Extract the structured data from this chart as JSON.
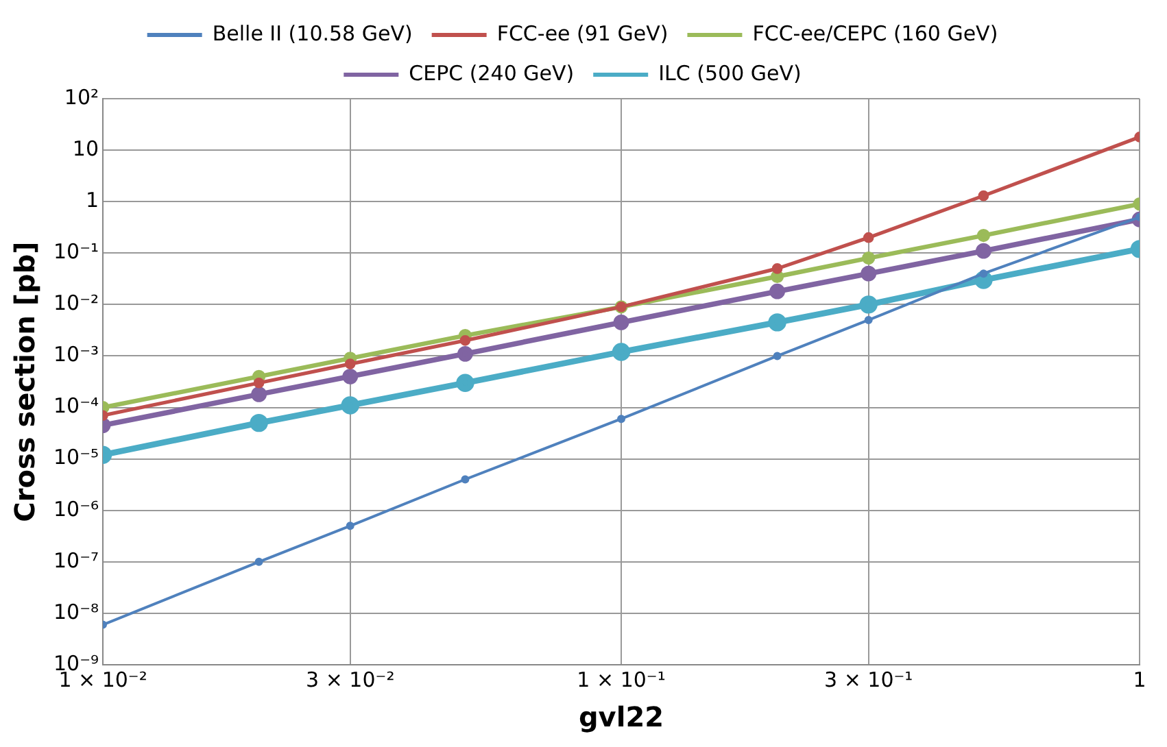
{
  "chart_data": {
    "type": "line",
    "xlabel": "gvl22",
    "ylabel": "Cross section [pb]",
    "log": "xy",
    "grid": true,
    "legend": "top",
    "marker": "circle",
    "line_style": "solid",
    "x": [
      0.01,
      0.02,
      0.03,
      0.05,
      0.1,
      0.2,
      0.3,
      0.5,
      1
    ],
    "xlim": [
      0.01,
      1
    ],
    "xticks": [
      {
        "value": 0.01,
        "label": "1 × 10⁻²"
      },
      {
        "value": 0.03,
        "label": "3 × 10⁻²"
      },
      {
        "value": 0.1,
        "label": "1 × 10⁻¹"
      },
      {
        "value": 0.3,
        "label": "3 × 10⁻¹"
      },
      1
    ],
    "ylim": [
      1e-09,
      100
    ],
    "yticks": [
      {
        "value": 1e-09,
        "label": "10⁻⁹"
      },
      {
        "value": 1e-08,
        "label": "10⁻⁸"
      },
      {
        "value": 1e-07,
        "label": "10⁻⁷"
      },
      {
        "value": 1e-06,
        "label": "10⁻⁶"
      },
      {
        "value": 1e-05,
        "label": "10⁻⁵"
      },
      {
        "value": 0.0001,
        "label": "10⁻⁴"
      },
      {
        "value": 0.001,
        "label": "10⁻³"
      },
      {
        "value": 0.01,
        "label": "10⁻²"
      },
      {
        "value": 0.1,
        "label": "10⁻¹"
      },
      1,
      10,
      {
        "value": 100,
        "label": "10²"
      }
    ],
    "series": [
      {
        "name": "Belle II (10.58 GeV)",
        "color": "#4f81bd",
        "values": [
          6e-09,
          1e-07,
          5e-07,
          4e-06,
          6e-05,
          0.001,
          0.005,
          0.04,
          0.5
        ]
      },
      {
        "name": "FCC-ee (91 GeV)",
        "color": "#c0504d",
        "values": [
          7e-05,
          0.0003,
          0.0007,
          0.002,
          0.009,
          0.05,
          0.2,
          1.3,
          18
        ]
      },
      {
        "name": "FCC-ee/CEPC (160 GeV)",
        "color": "#9bbb59",
        "values": [
          0.0001,
          0.0004,
          0.0009,
          0.0025,
          0.009,
          0.035,
          0.08,
          0.22,
          0.9
        ]
      },
      {
        "name": "CEPC (240 GeV)",
        "color": "#8064a2",
        "values": [
          4.5e-05,
          0.00018,
          0.0004,
          0.0011,
          0.0045,
          0.018,
          0.04,
          0.11,
          0.45
        ]
      },
      {
        "name": "ILC (500 GeV)",
        "color": "#4bacc6",
        "values": [
          1.2e-05,
          5e-05,
          0.00011,
          0.0003,
          0.0012,
          0.0045,
          0.01,
          0.03,
          0.12
        ]
      }
    ]
  }
}
